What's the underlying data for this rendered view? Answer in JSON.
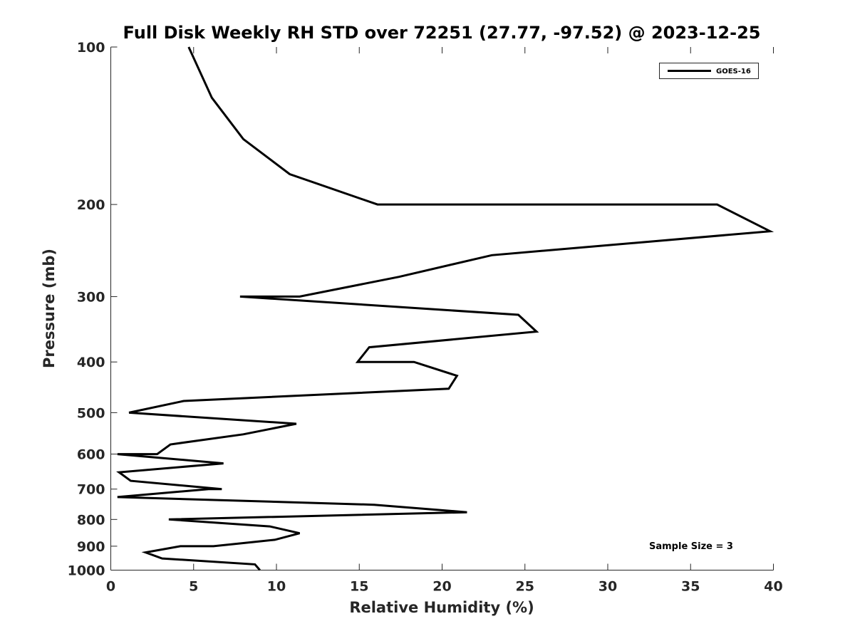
{
  "chart_data": {
    "type": "line",
    "title": "Full Disk Weekly RH STD over 72251 (27.77, -97.52) @ 2023-12-25",
    "xlabel": "Relative Humidity (%)",
    "ylabel": "Pressure (mb)",
    "xlim": [
      0,
      40
    ],
    "ylim": [
      100,
      1000
    ],
    "yscale": "log",
    "y_reversed": true,
    "grid": false,
    "legend_position": "top-right",
    "x_ticks": [
      0,
      5,
      10,
      15,
      20,
      25,
      30,
      35,
      40
    ],
    "y_ticks": [
      100,
      200,
      300,
      400,
      500,
      600,
      700,
      800,
      900,
      1000
    ],
    "x_tick_labels": [
      "0",
      "5",
      "10",
      "15",
      "20",
      "25",
      "30",
      "35",
      "40"
    ],
    "y_tick_labels": [
      "100",
      "200",
      "300",
      "400",
      "500",
      "600",
      "700",
      "800",
      "900",
      "1000"
    ],
    "series": [
      {
        "name": "GOES-16",
        "color": "#000000",
        "points": [
          [
            4.7,
            100
          ],
          [
            6.1,
            125
          ],
          [
            8.0,
            150
          ],
          [
            10.8,
            175
          ],
          [
            16.1,
            200
          ],
          [
            36.6,
            200
          ],
          [
            39.8,
            225
          ],
          [
            23.0,
            250
          ],
          [
            17.4,
            275
          ],
          [
            11.4,
            300
          ],
          [
            7.8,
            300
          ],
          [
            24.6,
            325
          ],
          [
            25.7,
            350
          ],
          [
            15.6,
            375
          ],
          [
            14.9,
            400
          ],
          [
            18.3,
            400
          ],
          [
            20.9,
            425
          ],
          [
            20.4,
            450
          ],
          [
            4.4,
            475
          ],
          [
            1.1,
            500
          ],
          [
            11.2,
            525
          ],
          [
            8.0,
            550
          ],
          [
            3.6,
            575
          ],
          [
            2.8,
            600
          ],
          [
            0.4,
            600
          ],
          [
            6.8,
            625
          ],
          [
            0.5,
            650
          ],
          [
            1.2,
            675
          ],
          [
            6.7,
            700
          ],
          [
            5.9,
            700
          ],
          [
            0.4,
            725
          ],
          [
            15.9,
            750
          ],
          [
            21.5,
            775
          ],
          [
            3.5,
            800
          ],
          [
            9.6,
            825
          ],
          [
            11.4,
            850
          ],
          [
            9.9,
            875
          ],
          [
            6.2,
            900
          ],
          [
            4.2,
            900
          ],
          [
            2.1,
            925
          ],
          [
            3.1,
            950
          ],
          [
            8.7,
            975
          ],
          [
            9.0,
            1000
          ]
        ]
      }
    ],
    "annotations": [
      "Sample Size = 3"
    ]
  }
}
